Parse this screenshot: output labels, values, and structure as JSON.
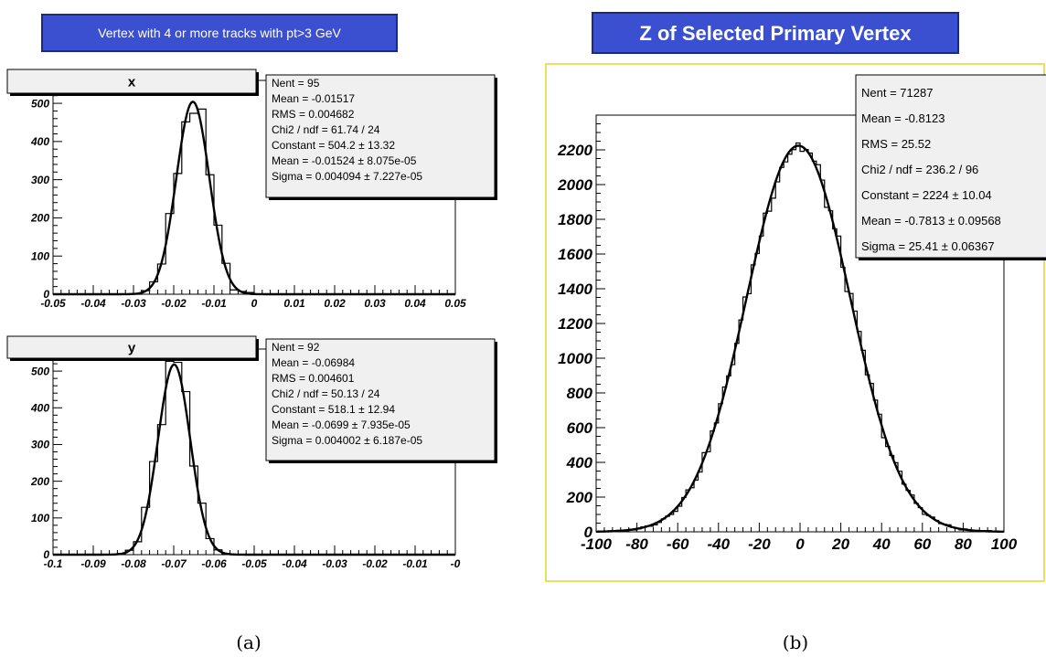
{
  "captions": [
    "(a)",
    "(b)"
  ],
  "left_banner": "Vertex with 4 or more tracks with pt>3 GeV",
  "right_banner": "Z of Selected Primary Vertex",
  "chart_data": [
    {
      "type": "histogram",
      "title": "x",
      "xlim": [
        -0.05,
        0.05
      ],
      "ylim": [
        0,
        560
      ],
      "x_ticks": [
        "-0.05",
        "-0.04",
        "-0.03",
        "-0.02",
        "-0.01",
        "0",
        "0.01",
        "0.02",
        "0.03",
        "0.04",
        "0.05"
      ],
      "y_ticks": [
        "0",
        "100",
        "200",
        "300",
        "400",
        "500"
      ],
      "fit": {
        "type": "gaussian",
        "constant": 504.2,
        "mean": -0.01524,
        "sigma": 0.004094
      },
      "bin_width": 0.002,
      "stats": [
        "Nent = 95",
        "Mean  = -0.01517",
        "RMS   = 0.004682",
        "Chi2 / ndf = 61.74 / 24",
        "Constant = 504.2  ± 13.32",
        "Mean    = -0.01524  ± 8.075e-05",
        "Sigma   = 0.004094  ± 7.227e-05"
      ]
    },
    {
      "type": "histogram",
      "title": "y",
      "xlim": [
        -0.1,
        0.0
      ],
      "ylim": [
        0,
        560
      ],
      "x_ticks": [
        "-0.1",
        "-0.09",
        "-0.08",
        "-0.07",
        "-0.06",
        "-0.05",
        "-0.04",
        "-0.03",
        "-0.02",
        "-0.01",
        "-0"
      ],
      "y_ticks": [
        "0",
        "100",
        "200",
        "300",
        "400",
        "500"
      ],
      "fit": {
        "type": "gaussian",
        "constant": 518.1,
        "mean": -0.0699,
        "sigma": 0.004002
      },
      "bin_width": 0.002,
      "stats": [
        "Nent = 92",
        "Mean  = -0.06984",
        "RMS   = 0.004601",
        "Chi2 / ndf = 50.13 / 24",
        "Constant = 518.1  ± 12.94",
        "Mean    = -0.0699  ± 7.935e-05",
        "Sigma   = 0.004002  ± 6.187e-05"
      ]
    },
    {
      "type": "histogram",
      "title": "",
      "xlim": [
        -100,
        100
      ],
      "ylim": [
        0,
        2400
      ],
      "x_ticks": [
        "-100",
        "-80",
        "-60",
        "-40",
        "-20",
        "0",
        "20",
        "40",
        "60",
        "80",
        "100"
      ],
      "y_ticks": [
        "0",
        "200",
        "400",
        "600",
        "800",
        "1000",
        "1200",
        "1400",
        "1600",
        "1800",
        "2000",
        "2200"
      ],
      "fit": {
        "type": "gaussian",
        "constant": 2224,
        "mean": -0.7813,
        "sigma": 25.41
      },
      "bin_width": 2,
      "stats": [
        "Nent = 71287",
        "Mean  = -0.8123",
        "RMS   = 25.52",
        "Chi2 / ndf = 236.2 / 96",
        "Constant = 2224 ± 10.04",
        "Mean    = -0.7813 ± 0.09568",
        "Sigma   = 25.41 ± 0.06367"
      ]
    }
  ]
}
